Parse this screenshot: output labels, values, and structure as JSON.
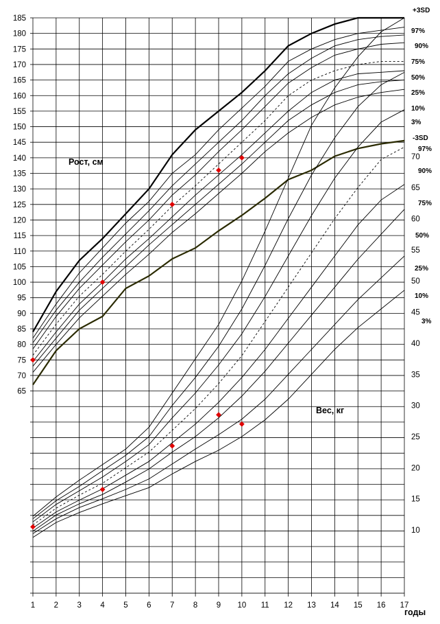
{
  "chart_data": {
    "type": "line",
    "title": "",
    "xlabel": "годы",
    "height_label": "Рост, см",
    "weight_label": "Вес, кг",
    "x": [
      1,
      2,
      3,
      4,
      5,
      6,
      7,
      8,
      9,
      10,
      11,
      12,
      13,
      14,
      15,
      16,
      17
    ],
    "x_ticks": [
      "1",
      "2",
      "3",
      "4",
      "5",
      "6",
      "7",
      "8",
      "9",
      "10",
      "11",
      "12",
      "13",
      "14",
      "15",
      "16",
      "17"
    ],
    "height_axis": {
      "range": [
        65,
        185
      ],
      "ticks": [
        "65",
        "70",
        "75",
        "80",
        "85",
        "90",
        "95",
        "100",
        "105",
        "110",
        "115",
        "120",
        "125",
        "130",
        "135",
        "140",
        "145",
        "150",
        "155",
        "160",
        "165",
        "170",
        "175",
        "180",
        "185"
      ]
    },
    "weight_axis": {
      "range": [
        10,
        70
      ],
      "ticks": [
        "10",
        "15",
        "20",
        "25",
        "30",
        "35",
        "40",
        "45",
        "50",
        "55",
        "60",
        "65",
        "70"
      ]
    },
    "height_series": [
      {
        "name": "+3SD",
        "style": "bold",
        "values": [
          84,
          97,
          107,
          114,
          122,
          130,
          141,
          149,
          155,
          161,
          168,
          176,
          180,
          183,
          185,
          185,
          185
        ]
      },
      {
        "name": "97%",
        "style": "thin",
        "values": [
          82,
          93,
          103,
          111,
          119,
          126,
          135,
          141,
          149,
          156,
          163,
          171,
          175,
          178,
          180,
          181,
          182
        ]
      },
      {
        "name": "90%",
        "style": "thin",
        "values": [
          80.5,
          91,
          100,
          108,
          115.5,
          123,
          131,
          138,
          145,
          152,
          160,
          167,
          172,
          176,
          178,
          179,
          179.5
        ]
      },
      {
        "name": "75%",
        "style": "thin",
        "values": [
          78.5,
          89,
          98,
          105.5,
          113,
          120,
          128,
          134.5,
          142,
          149,
          156.5,
          164,
          169,
          173,
          175,
          176.5,
          177
        ]
      },
      {
        "name": "50%",
        "style": "dashed",
        "values": [
          76.5,
          86.5,
          95.5,
          102.5,
          110,
          117,
          124.5,
          131,
          138,
          145,
          152,
          160,
          165,
          168,
          170,
          171,
          171
        ]
      },
      {
        "name": "25%",
        "style": "thin",
        "values": [
          74.5,
          84,
          93,
          100,
          107.5,
          114,
          121,
          128,
          134.5,
          141,
          148,
          155,
          161,
          165,
          167,
          167.5,
          168
        ]
      },
      {
        "name": "10%",
        "style": "thin",
        "values": [
          73,
          82,
          91,
          98,
          105,
          112,
          118.5,
          125,
          131.5,
          138,
          145,
          152,
          157,
          161,
          163.5,
          164.5,
          165
        ]
      },
      {
        "name": "3%",
        "style": "thin",
        "values": [
          71,
          80,
          88.5,
          95.5,
          102.5,
          109,
          116,
          122,
          128.5,
          135,
          142,
          148,
          153,
          157,
          159.5,
          161,
          162
        ]
      },
      {
        "name": "-3SD",
        "style": "olive",
        "values": [
          67,
          78,
          85,
          89,
          98,
          102,
          107.5,
          111,
          116.5,
          121.5,
          127,
          133,
          136,
          140.5,
          143,
          144.5,
          145.5
        ]
      }
    ],
    "weight_series": [
      {
        "name": "97%",
        "style": "thin",
        "values": [
          12.2,
          15.3,
          18,
          20.5,
          23,
          26.5,
          32,
          37.5,
          43,
          50,
          58,
          66.5,
          75,
          81,
          86,
          90,
          94
        ]
      },
      {
        "name": "90%",
        "style": "thin",
        "values": [
          11.8,
          14.7,
          17,
          19.5,
          22,
          25,
          30,
          34.5,
          39.5,
          45.5,
          52.5,
          60,
          67,
          73,
          78,
          81.5,
          83.5
        ]
      },
      {
        "name": "75%",
        "style": "thin",
        "values": [
          11.3,
          14.1,
          16.3,
          18.5,
          21,
          23.7,
          28,
          32,
          36.5,
          41.5,
          47.5,
          54,
          60.5,
          66.5,
          71.5,
          75.5,
          77.5
        ]
      },
      {
        "name": "50%",
        "style": "dashed",
        "values": [
          10.8,
          13.5,
          15.6,
          17.5,
          20,
          22.5,
          26,
          29.5,
          33.5,
          38,
          43.5,
          49,
          54.5,
          60,
          65,
          69.5,
          71.5
        ]
      },
      {
        "name": "25%",
        "style": "thin",
        "values": [
          10.3,
          12.9,
          14.8,
          16.6,
          18.8,
          21,
          24,
          27,
          30.5,
          34.5,
          39,
          44,
          49,
          54,
          59,
          63,
          65.5
        ]
      },
      {
        "name": "10%",
        "style": "thin",
        "values": [
          9.8,
          12.4,
          14.2,
          15.7,
          17.7,
          19.8,
          22.5,
          25,
          28,
          31.5,
          35.5,
          40,
          44.5,
          49,
          53.5,
          57.5,
          61.5
        ]
      },
      {
        "name": "3%",
        "style": "thin",
        "values": [
          9.4,
          11.8,
          13.6,
          15,
          16.5,
          18.2,
          20.6,
          23,
          25.3,
          27.8,
          31,
          35,
          39,
          43,
          47,
          50.5,
          54
        ]
      },
      {
        "name": "",
        "style": "thin",
        "values": [
          8.8,
          11.2,
          12.8,
          14.2,
          15.5,
          16.8,
          19,
          21,
          22.8,
          25,
          27.7,
          31,
          35,
          39,
          42.5,
          45.5,
          48.5
        ]
      }
    ],
    "height_points": [
      [
        1,
        75
      ],
      [
        4,
        100
      ],
      [
        7,
        125
      ],
      [
        9,
        136
      ],
      [
        10,
        140
      ]
    ],
    "weight_points": [
      [
        1,
        10.5
      ],
      [
        4,
        16.5
      ],
      [
        7,
        23.5
      ],
      [
        9,
        28.5
      ],
      [
        10,
        27
      ]
    ],
    "point_color": "#e00000",
    "grid": true
  }
}
